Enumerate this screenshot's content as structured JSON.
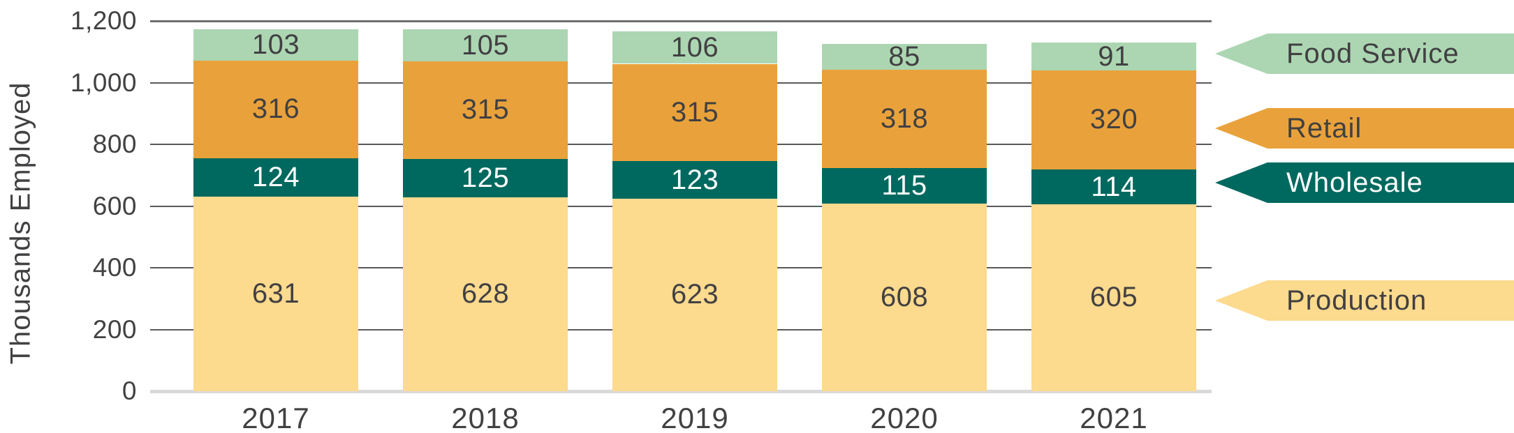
{
  "chart_data": {
    "type": "bar",
    "stacked": true,
    "title": "",
    "xlabel": "",
    "ylabel": "Thousands Employed",
    "categories": [
      "2017",
      "2018",
      "2019",
      "2020",
      "2021"
    ],
    "series": [
      {
        "name": "Production",
        "color": "#FCDA8E",
        "label_color": "#414042",
        "values": [
          631,
          628,
          623,
          608,
          605
        ]
      },
      {
        "name": "Wholesale",
        "color": "#00695F",
        "label_color": "#FFFFFF",
        "values": [
          124,
          125,
          123,
          115,
          114
        ]
      },
      {
        "name": "Retail",
        "color": "#E9A23B",
        "label_color": "#414042",
        "values": [
          316,
          315,
          315,
          318,
          320
        ]
      },
      {
        "name": "Food Service",
        "color": "#ACD6B2",
        "label_color": "#414042",
        "values": [
          103,
          105,
          106,
          85,
          91
        ]
      }
    ],
    "ylim": [
      0,
      1200
    ],
    "ytick_step": 200,
    "yticks": [
      "0",
      "200",
      "400",
      "600",
      "800",
      "1,000",
      "1,200"
    ],
    "grid": true,
    "legend_position": "right",
    "legend": [
      {
        "label": "Food Service",
        "color": "#ACD6B2",
        "text_color": "#414042"
      },
      {
        "label": "Retail",
        "color": "#E9A23B",
        "text_color": "#414042"
      },
      {
        "label": "Wholesale",
        "color": "#00695F",
        "text_color": "#FFFFFF"
      },
      {
        "label": "Production",
        "color": "#FCDA8E",
        "text_color": "#414042"
      }
    ],
    "axis_colors": {
      "gridline": "#58595B",
      "top_gridline": "#6D6E71",
      "zero_line": "#D9D9DA",
      "text": "#414042"
    }
  }
}
